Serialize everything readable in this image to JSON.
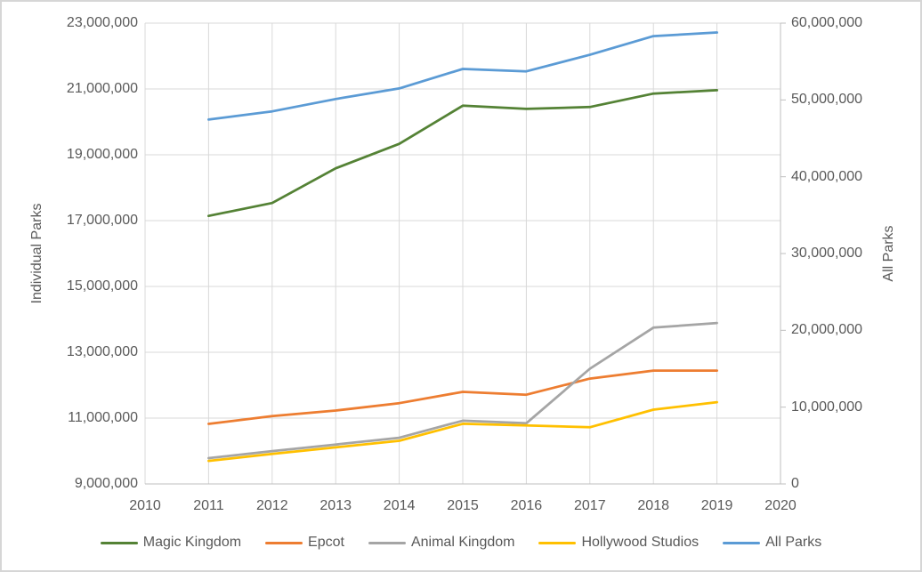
{
  "chart": {
    "left_axis": {
      "title": "Individual Parks",
      "tick_labels": [
        "23,000,000",
        "21,000,000",
        "19,000,000",
        "17,000,000",
        "15,000,000",
        "13,000,000",
        "11,000,000",
        "9,000,000"
      ]
    },
    "right_axis": {
      "title": "All Parks",
      "tick_labels": [
        "60,000,000",
        "50,000,000",
        "40,000,000",
        "30,000,000",
        "20,000,000",
        "10,000,000",
        "0"
      ]
    },
    "x_axis": {
      "tick_labels": [
        "2010",
        "2011",
        "2012",
        "2013",
        "2014",
        "2015",
        "2016",
        "2017",
        "2018",
        "2019",
        "2020"
      ]
    },
    "legend": [
      {
        "label": "Magic Kingdom",
        "color": "#548235"
      },
      {
        "label": "Epcot",
        "color": "#ED7D31"
      },
      {
        "label": "Animal Kingdom",
        "color": "#A5A5A5"
      },
      {
        "label": "Hollywood Studios",
        "color": "#FFC000"
      },
      {
        "label": "All Parks",
        "color": "#5B9BD5"
      }
    ],
    "colors": {
      "gridline": "#D9D9D9",
      "axis_line": "#BFBFBF",
      "text": "#595959"
    }
  },
  "chart_data": {
    "type": "line",
    "title": "",
    "x": [
      2011,
      2012,
      2013,
      2014,
      2015,
      2016,
      2017,
      2018,
      2019
    ],
    "xlim": [
      2010,
      2020
    ],
    "left_ylabel": "Individual Parks",
    "right_ylabel": "All Parks",
    "left_ylim": [
      9000000,
      23000000
    ],
    "right_ylim": [
      0,
      60000000
    ],
    "grid": true,
    "legend_position": "bottom",
    "series": [
      {
        "name": "Magic Kingdom",
        "axis": "left",
        "color": "#548235",
        "values": [
          17142000,
          17536000,
          18588000,
          19332000,
          20492000,
          20395000,
          20450000,
          20859000,
          20963000
        ]
      },
      {
        "name": "Epcot",
        "axis": "left",
        "color": "#ED7D31",
        "values": [
          10825000,
          11063000,
          11229000,
          11454000,
          11798000,
          11712000,
          12200000,
          12444000,
          12444000
        ]
      },
      {
        "name": "Animal Kingdom",
        "axis": "left",
        "color": "#A5A5A5",
        "values": [
          9783000,
          9998000,
          10198000,
          10402000,
          10922000,
          10844000,
          12500000,
          13750000,
          13888000
        ]
      },
      {
        "name": "Hollywood Studios",
        "axis": "left",
        "color": "#FFC000",
        "values": [
          9699000,
          9912000,
          10110000,
          10312000,
          10828000,
          10776000,
          10722000,
          11258000,
          11483000
        ]
      },
      {
        "name": "All Parks",
        "axis": "right",
        "color": "#5B9BD5",
        "values": [
          47449000,
          48509000,
          50125000,
          51500000,
          54040000,
          53727000,
          55872000,
          58311000,
          58778000
        ]
      }
    ]
  }
}
